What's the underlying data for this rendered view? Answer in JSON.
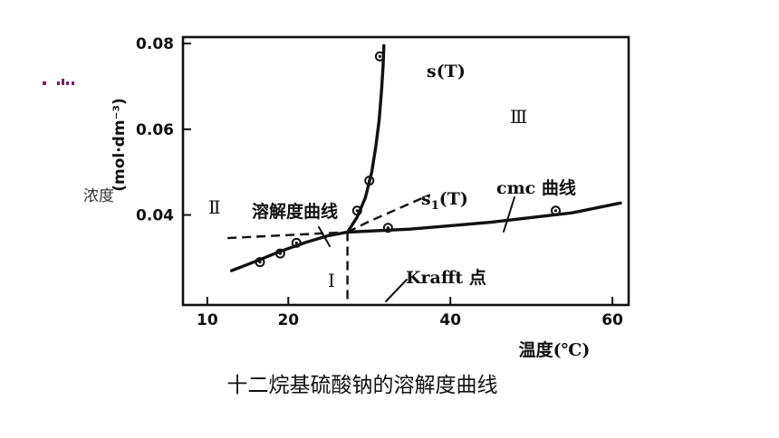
{
  "chart_data": {
    "type": "line",
    "title": "十二烷基硫酸钠的溶解度曲线",
    "xlabel": "温度(℃)",
    "ylabel": "(mol·dm⁻³)",
    "ylabel_side": "浓度",
    "xlim": [
      7,
      62
    ],
    "ylim": [
      0.019,
      0.0815
    ],
    "x_ticks": [
      10,
      20,
      40,
      60
    ],
    "y_ticks": [
      0.04,
      0.06,
      0.08
    ],
    "x_tick_labels": [
      "10",
      "20",
      "40",
      "60"
    ],
    "y_tick_labels": [
      "0.04",
      "0.06",
      "0.08"
    ],
    "grid": false,
    "series": [
      {
        "name": "溶解度曲线",
        "style": "solid",
        "x": [
          13,
          16,
          19,
          22,
          25,
          27.3
        ],
        "y": [
          0.027,
          0.0292,
          0.0315,
          0.0335,
          0.0352,
          0.036
        ]
      },
      {
        "name": "s(T)",
        "style": "solid",
        "x": [
          27.3,
          28.5,
          29.5,
          30.3,
          30.8,
          31.2,
          31.5,
          31.7,
          31.8
        ],
        "y": [
          0.036,
          0.0395,
          0.044,
          0.05,
          0.056,
          0.062,
          0.069,
          0.075,
          0.0795
        ]
      },
      {
        "name": "cmc 曲线",
        "style": "solid",
        "x": [
          27.3,
          35,
          45,
          55,
          61
        ],
        "y": [
          0.036,
          0.0367,
          0.0383,
          0.0405,
          0.0428
        ]
      },
      {
        "name": "s1(T)",
        "style": "dashed",
        "x": [
          27.3,
          30,
          33,
          36,
          37.5
        ],
        "y": [
          0.036,
          0.0385,
          0.041,
          0.0435,
          0.0447
        ]
      },
      {
        "name": "",
        "style": "dashed",
        "x": [
          12.5,
          27.3
        ],
        "y": [
          0.0346,
          0.036
        ]
      },
      {
        "name": "",
        "style": "dashed",
        "x": [
          27.3,
          27.3
        ],
        "y": [
          0.036,
          0.0195
        ]
      }
    ],
    "points": [
      {
        "x": 16.5,
        "y": 0.029
      },
      {
        "x": 19.0,
        "y": 0.031
      },
      {
        "x": 21.0,
        "y": 0.0335
      },
      {
        "x": 28.5,
        "y": 0.041
      },
      {
        "x": 30.0,
        "y": 0.048
      },
      {
        "x": 31.3,
        "y": 0.077
      },
      {
        "x": 32.3,
        "y": 0.037
      },
      {
        "x": 53.0,
        "y": 0.041
      }
    ],
    "annotations": {
      "s_T": "s(T)",
      "s1_T_base": "s",
      "s1_T_sub": "1",
      "s1_T_tail": "(T)",
      "region_I": "Ⅰ",
      "region_II": "Ⅱ",
      "region_III": "Ⅲ",
      "solubility_curve": "溶解度曲线",
      "cmc_curve": "cmc 曲线",
      "krafft": "Krafft 点"
    }
  }
}
